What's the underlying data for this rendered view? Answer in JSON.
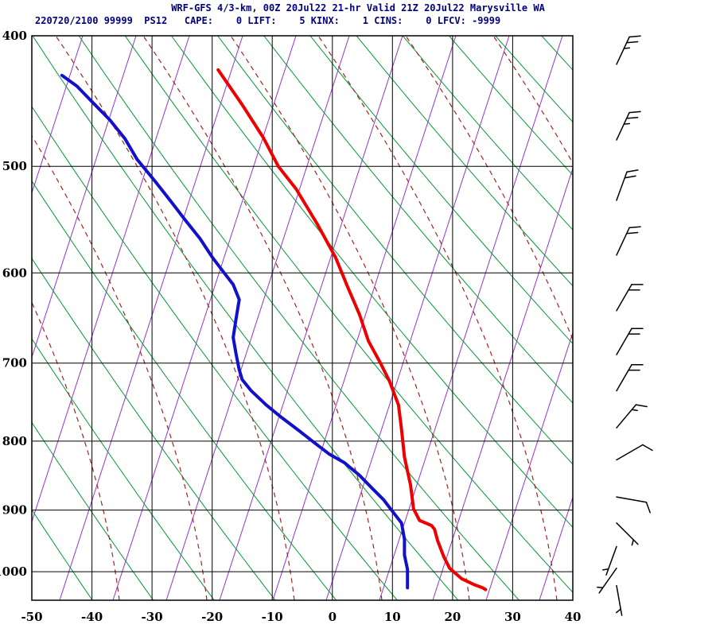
{
  "header": {
    "title_line1": "WRF-GFS 4/3-km, 00Z 20Jul22 21-hr Valid 21Z 20Jul22 Marysville WA",
    "title_line2": "220720/2100 99999  PS12   CAPE:    0 LIFT:    5 KINX:    1 CINS:    0 LFCV: -9999",
    "text_color": "#000080"
  },
  "chart_data": {
    "type": "line",
    "subtype": "thermodynamic-sounding (T / Td vs log-pressure with wind barbs)",
    "title": "WRF-GFS 4/3-km, 00Z 20Jul22 21-hr Valid 21Z 20Jul22 Marysville WA",
    "model": "WRF-GFS 4/3-km",
    "init_time": "00Z 20Jul22",
    "forecast_hour": "21-hr",
    "valid_time": "21Z 20Jul22",
    "station": "Marysville WA",
    "id_line": "220720/2100 99999 PS12",
    "indices": {
      "CAPE": 0,
      "LIFT": 5,
      "KINX": 1,
      "CINS": 0,
      "LFCV": -9999
    },
    "xlabel_ticks": [
      -50,
      -40,
      -30,
      -20,
      -10,
      0,
      10,
      20,
      30,
      40
    ],
    "ylabel_ticks": [
      400,
      500,
      600,
      700,
      800,
      900,
      1000
    ],
    "x_unit": "degC",
    "y_unit": "hPa",
    "xlim": [
      -50,
      40
    ],
    "plim": [
      400,
      1050
    ],
    "grid": "on",
    "legend": "none",
    "series": [
      {
        "name": "temperature",
        "color": "#ee0000",
        "points": [
          [
            424,
            -19
          ],
          [
            450,
            -15
          ],
          [
            476,
            -11.5
          ],
          [
            500,
            -9
          ],
          [
            520,
            -6
          ],
          [
            552,
            -2.5
          ],
          [
            584,
            0.5
          ],
          [
            614,
            2.5
          ],
          [
            644,
            4.5
          ],
          [
            674,
            6
          ],
          [
            700,
            8
          ],
          [
            722,
            9.5
          ],
          [
            752,
            11
          ],
          [
            784,
            11.5
          ],
          [
            822,
            12
          ],
          [
            862,
            13
          ],
          [
            898,
            13.5
          ],
          [
            916,
            14.5
          ],
          [
            924,
            16.5
          ],
          [
            930,
            17
          ],
          [
            948,
            17.5
          ],
          [
            974,
            18.5
          ],
          [
            994,
            19.5
          ],
          [
            1012,
            21.5
          ],
          [
            1022,
            23.5
          ],
          [
            1028,
            25
          ],
          [
            1031,
            25.5
          ]
        ]
      },
      {
        "name": "dewpoint",
        "color": "#1111cc",
        "points": [
          [
            428,
            -45
          ],
          [
            436,
            -42.5
          ],
          [
            450,
            -39.5
          ],
          [
            462,
            -37
          ],
          [
            477,
            -34.5
          ],
          [
            494,
            -32.5
          ],
          [
            513,
            -29.5
          ],
          [
            530,
            -27
          ],
          [
            548,
            -24.5
          ],
          [
            566,
            -22
          ],
          [
            584,
            -20
          ],
          [
            600,
            -18
          ],
          [
            612,
            -16.5
          ],
          [
            628,
            -15.5
          ],
          [
            648,
            -16
          ],
          [
            670,
            -16.5
          ],
          [
            690,
            -16
          ],
          [
            708,
            -15.5
          ],
          [
            720,
            -15
          ],
          [
            734,
            -13.5
          ],
          [
            752,
            -11
          ],
          [
            768,
            -8.5
          ],
          [
            786,
            -5.5
          ],
          [
            802,
            -3
          ],
          [
            818,
            -0.5
          ],
          [
            830,
            2
          ],
          [
            848,
            4.5
          ],
          [
            866,
            6.5
          ],
          [
            884,
            8.5
          ],
          [
            902,
            10
          ],
          [
            920,
            11.5
          ],
          [
            946,
            12
          ],
          [
            972,
            12
          ],
          [
            996,
            12.5
          ],
          [
            1016,
            12.5
          ],
          [
            1028,
            12.5
          ]
        ]
      }
    ],
    "wind_barbs": [
      {
        "p": 420,
        "dir": 25,
        "spd": 25
      },
      {
        "p": 478,
        "dir": 25,
        "spd": 25
      },
      {
        "p": 530,
        "dir": 20,
        "spd": 20
      },
      {
        "p": 582,
        "dir": 25,
        "spd": 20
      },
      {
        "p": 640,
        "dir": 30,
        "spd": 20
      },
      {
        "p": 690,
        "dir": 30,
        "spd": 20
      },
      {
        "p": 734,
        "dir": 30,
        "spd": 20
      },
      {
        "p": 782,
        "dir": 40,
        "spd": 15
      },
      {
        "p": 826,
        "dir": 60,
        "spd": 10
      },
      {
        "p": 880,
        "dir": 100,
        "spd": 10
      },
      {
        "p": 920,
        "dir": 135,
        "spd": 5
      },
      {
        "p": 958,
        "dir": 200,
        "spd": 5
      },
      {
        "p": 994,
        "dir": 215,
        "spd": 5
      },
      {
        "p": 1024,
        "dir": 170,
        "spd": 5
      }
    ],
    "background": {
      "grid_color": "#000000",
      "dry_adiabat_color": "#009933",
      "moist_adiabat_color": "#aa2222",
      "mixing_ratio_color": "#9933cc",
      "temperature_color": "#ee0000",
      "dewpoint_color": "#1111cc",
      "barb_color": "#000000"
    }
  }
}
